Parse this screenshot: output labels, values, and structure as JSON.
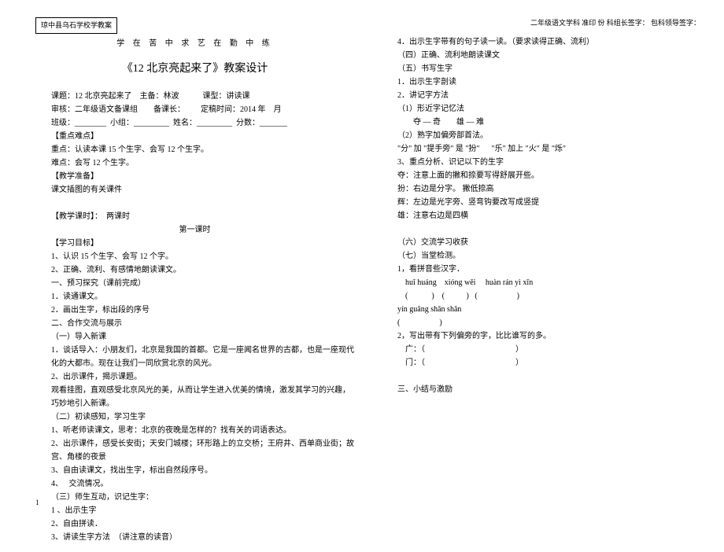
{
  "header": {
    "school": "琼中县乌石学校学教案",
    "motto": "学 在 苦 中 求    艺 在 勤 中 练",
    "subject_info": "二年级语文学科 准印      份 科组长签字：          包科领导签字："
  },
  "title": "《12 北京亮起来了》教案设计",
  "left": {
    "meta1": "课题：12 北京亮起来了    主备：林波            课型：讲读课",
    "meta2": "审核：二年级语文备课组        备课长：        定稿时间：2014 年    月",
    "meta3": "班级：________  小组：_________  姓名：_________  分数：_______",
    "h1": "【重点难点】",
    "l1": "重点：认读本课 15 个生字、会写 12 个生字。",
    "l2": "难点：会写 12 个生字。",
    "h2": "【教学准备】",
    "l3": "课文插图的有关课件",
    "h3": "【教学课时】：  两课时",
    "lesson1": "第一课时",
    "h4": "【学习目标】",
    "l4": "1、认识 15 个生字、会写 12 个字。",
    "l5": "2、正确、流利、有感情地朗读课文。",
    "l6": "一、预习探究（课前完成）",
    "l7": "1．读通课文。",
    "l8": "2．画出生字，标出段的序号",
    "l9": "二、合作交流与展示",
    "l10": "（一）导入新课",
    "l11": "1．谈话导入：小朋友们，北京是我国的首都。它是一座闻名世界的古都，也是一座现代化的大都市。现在让我们一同欣赏北京的风光。",
    "l12": "2、出示课件，揭示课题。",
    "l13": "观看挂图，直观感受北京风光的美，从而让学生进入优美的情境，激发其学习的兴趣，巧妙地引入新课。",
    "l14": "（二）初读感知，学习生字",
    "l15": "1、听老师读课文，思考：北京的夜晚是怎样的？找有关的词语表达。",
    "l16": "2、出示课件，感受长安街；天安门城楼；环形路上的立交桥；王府井、西单商业街；故宫、角楼的夜景",
    "l17": "3、自由读课文，找出生字，标出自然段序号。",
    "l18": "4、   交流情况。",
    "l19": "（三）师生互动，识记生字：",
    "l20": "1 、出示生字",
    "l21": "2、自由拼读．",
    "l22": "3、讲读生字方法  （讲注意的读音）"
  },
  "right": {
    "r1": "4．出示生字带有的句子读一读。（要求读得正确、流利）",
    "r2": "（四）正确、流利地朗读课文",
    "r3": "（五）书写生字",
    "r4": "1．出示生字剖读",
    "r5": "2．讲记字方法",
    "r6": "（1）形近字记忆法",
    "r7": "        夺 — 奇        雄 — 难",
    "r8": "（2）熟字加偏旁部首法。",
    "r9": "\"分\" 加 \"提手旁\" 是 \"扮\"      \"乐\" 加上 \"火\" 是 \"烁\"",
    "r10": "3、重点分析、识记以下的生字",
    "r11": "夺：注意上面的撇和捺要写得舒展开些。",
    "r12": "扮：右边是分字。 撇低捺高",
    "r13": "辉：左边是光字旁、竖弯钩要改写成竖提",
    "r14": "雄：注意右边是四横",
    "r15": "（六）交流学习收获",
    "r16": "（七）当堂检测。",
    "r17": "1，看拼音些汉字．",
    "r18": "    huī huáng    xióng wěi     huàn rán yì xīn",
    "r19": "    (            )    (           )   (                    )",
    "r20": "yín guāng shǎn shǎn",
    "r21": "(                    )",
    "r22": "2，写出带有下列偏旁的字，比比谁写的多。",
    "r23": "    广：（                                              ）",
    "r24": "    门：（                                              ）",
    "r25": "三、小结与激励"
  },
  "page_num": "1"
}
